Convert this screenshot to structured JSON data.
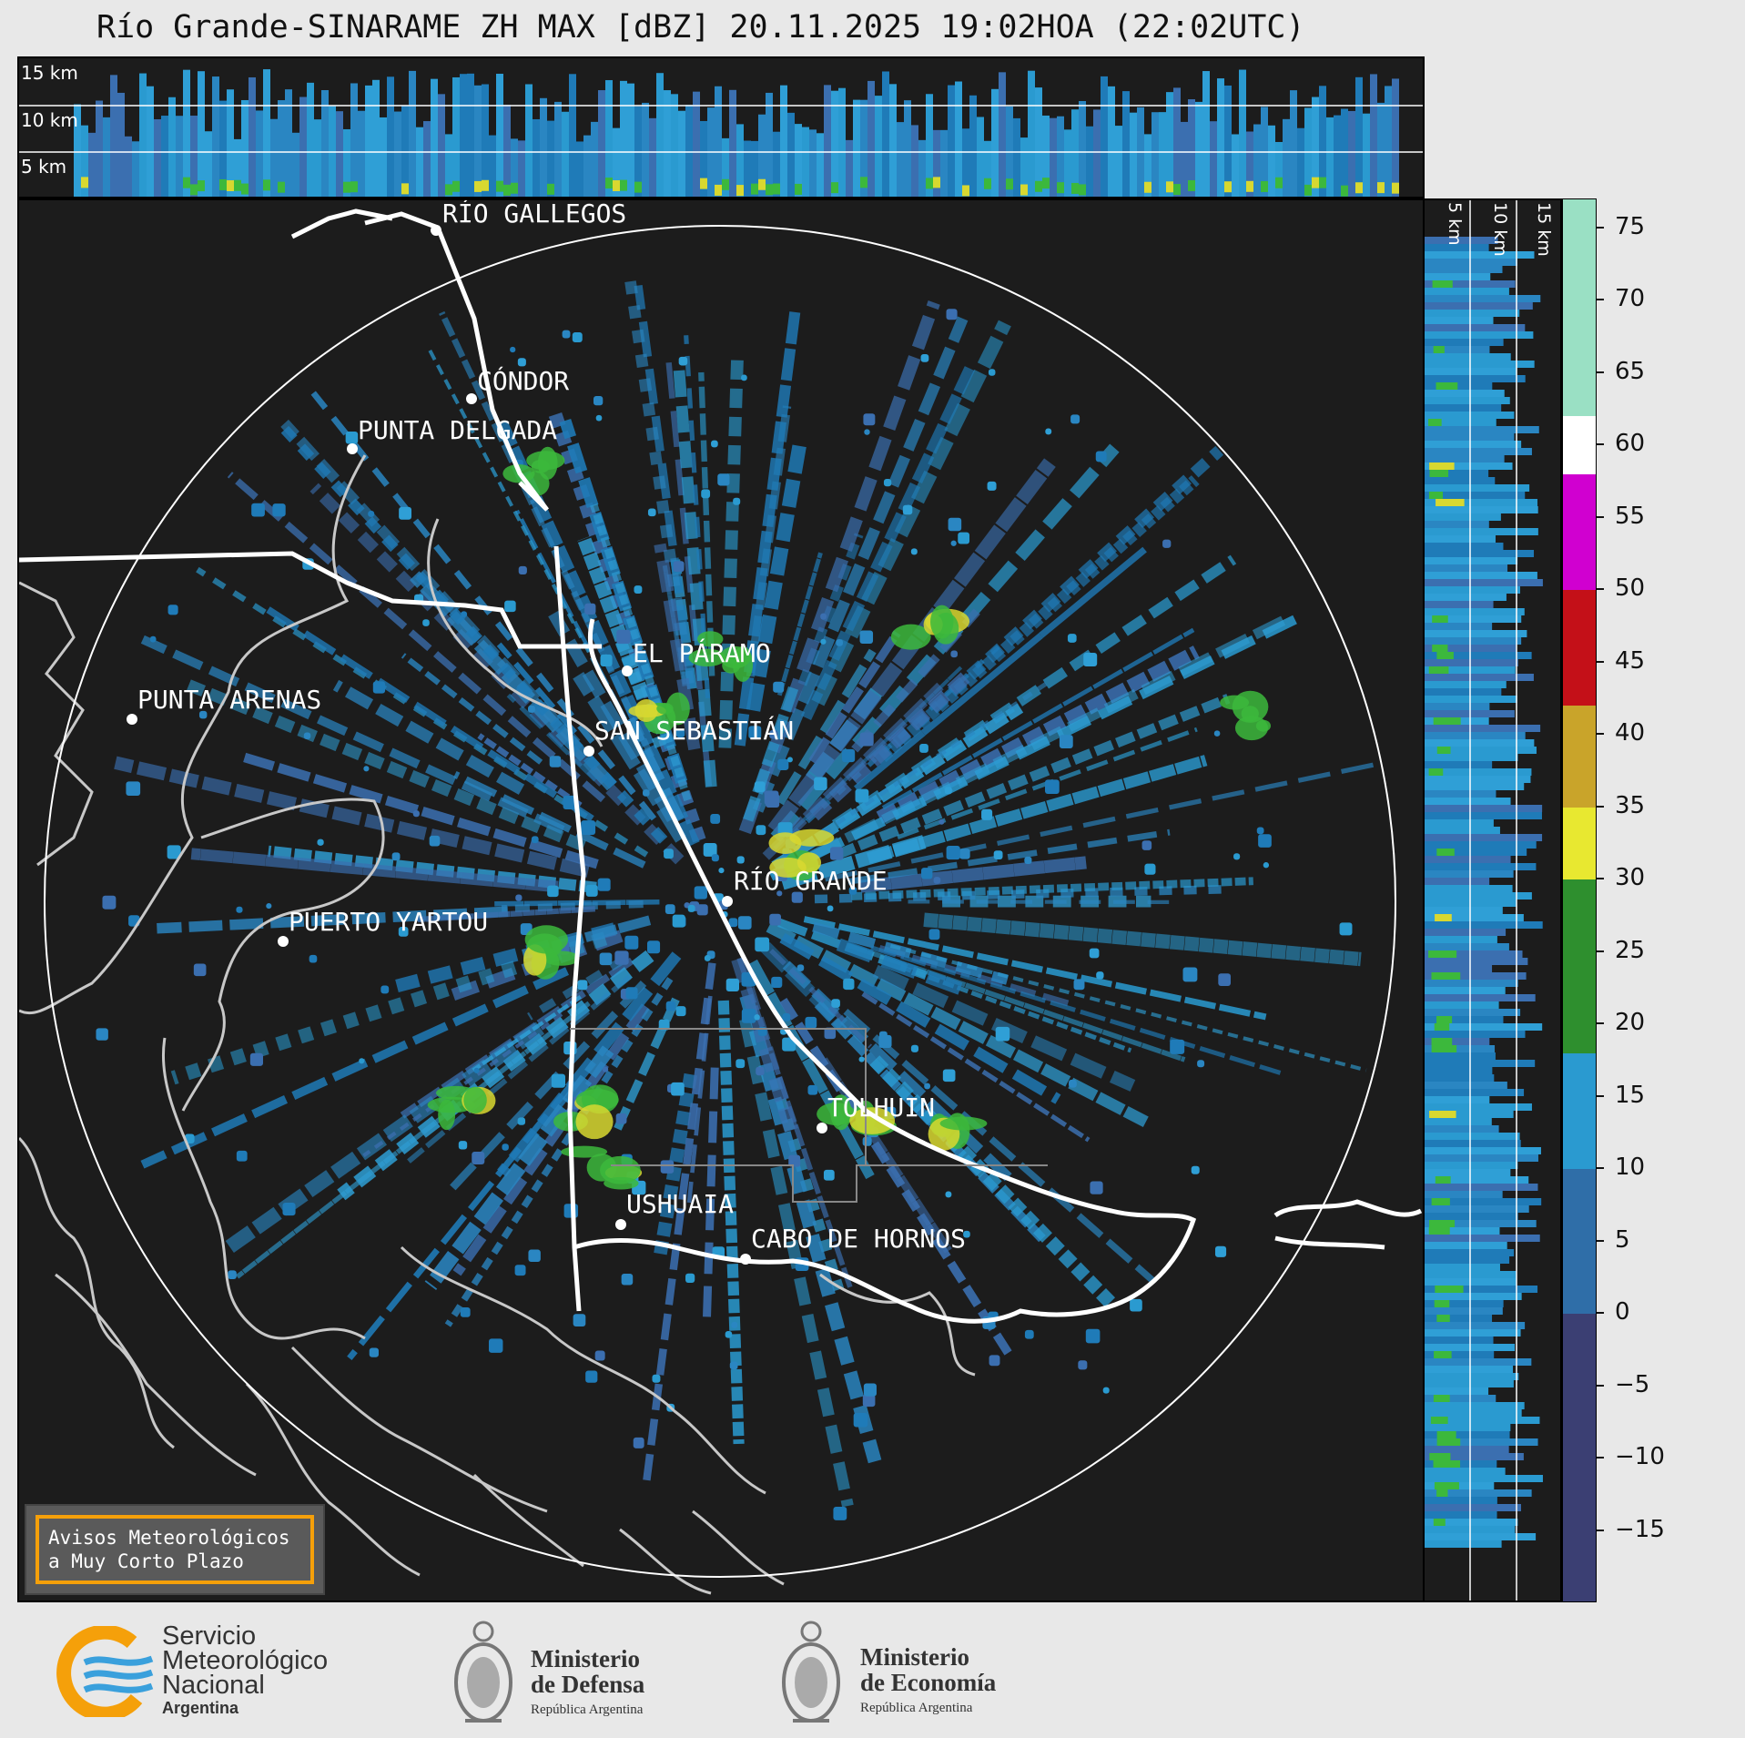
{
  "title": "Río Grande-SINARAME ZH MAX [dBZ] 20.11.2025 19:02HOA (22:02UTC)",
  "top_panel": {
    "altitudes": [
      "15 km",
      "10 km",
      "5 km"
    ]
  },
  "side_panel": {
    "altitudes": [
      "5 km",
      "10 km",
      "15 km"
    ]
  },
  "colorbar": {
    "unit": "dBZ",
    "ticks": [
      "75",
      "70",
      "65",
      "60",
      "55",
      "50",
      "45",
      "40",
      "35",
      "30",
      "25",
      "20",
      "15",
      "10",
      "5",
      "0",
      "−5",
      "−10",
      "−15"
    ],
    "range": [
      -20,
      77
    ],
    "bands": [
      {
        "from": -20,
        "to": 0,
        "color": "#3b3f73"
      },
      {
        "from": 0,
        "to": 10,
        "color": "#2f6ea8"
      },
      {
        "from": 10,
        "to": 18,
        "color": "#2a9ad0"
      },
      {
        "from": 18,
        "to": 30,
        "color": "#2e8f2e"
      },
      {
        "from": 30,
        "to": 35,
        "color": "#e8e830"
      },
      {
        "from": 35,
        "to": 42,
        "color": "#c9a42a"
      },
      {
        "from": 42,
        "to": 50,
        "color": "#c41018"
      },
      {
        "from": 50,
        "to": 58,
        "color": "#d000d0"
      },
      {
        "from": 58,
        "to": 62,
        "color": "#ffffff"
      },
      {
        "from": 62,
        "to": 77,
        "color": "#9ae0c4"
      }
    ]
  },
  "cities": [
    {
      "name": "RÍO GALLEGOS"
    },
    {
      "name": "CÓNDOR"
    },
    {
      "name": "PUNTA DELGADA"
    },
    {
      "name": "EL PÁRAMO"
    },
    {
      "name": "SAN SEBASTIÁN"
    },
    {
      "name": "PUNTA ARENAS"
    },
    {
      "name": "RÍO GRANDE"
    },
    {
      "name": "PUERTO YARTOU"
    },
    {
      "name": "TOLHUIN"
    },
    {
      "name": "USHUAIA"
    },
    {
      "name": "CABO DE HORNOS"
    }
  ],
  "notice": {
    "line1": "Avisos Meteorológicos",
    "line2": "a Muy Corto Plazo"
  },
  "logos": {
    "smn": {
      "line1": "Servicio",
      "line2": "Meteorológico",
      "line3": "Nacional",
      "line4": "Argentina"
    },
    "defensa": {
      "line1": "Ministerio",
      "line2": "de Defensa",
      "line3": "República Argentina"
    },
    "economia": {
      "line1": "Ministerio",
      "line2": "de Economía",
      "line3": "República Argentina"
    }
  },
  "colors": {
    "background": "#1c1c1c",
    "coast": "#c8c8c8",
    "border": "#ffffff",
    "notice_border": "#f5a00a"
  }
}
